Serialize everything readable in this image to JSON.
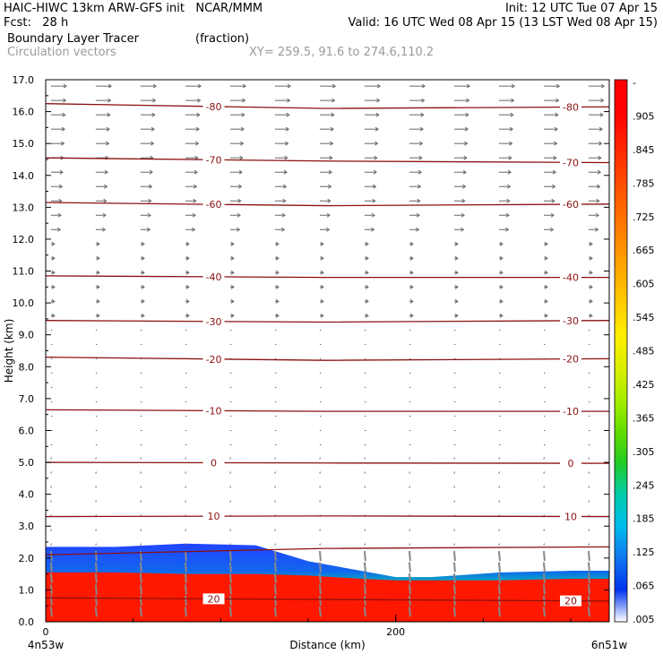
{
  "header": {
    "line1_left": "HAIC-HIWC 13km ARW-GFS init   NCAR/MMM",
    "line1_right": "Init: 12 UTC Tue 07 Apr 15",
    "line2_left": "Fcst:   28 h",
    "line2_right": "Valid: 16 UTC Wed 08 Apr 15 (13 LST Wed 08 Apr 15)",
    "field_name": "Boundary Layer Tracer",
    "field_units": "(fraction)",
    "vectors_label": "Circulation vectors",
    "xy_label": "XY= 259.5, 91.6 to 274.6,110.2"
  },
  "chart_data": {
    "type": "cross-section",
    "ylabel": "Height (km)",
    "xlabel": "Distance (km)",
    "ylim": [
      0,
      17
    ],
    "yticks": [
      "0.0",
      "1.0",
      "2.0",
      "3.0",
      "4.0",
      "5.0",
      "6.0",
      "7.0",
      "8.0",
      "9.0",
      "10.0",
      "11.0",
      "12.0",
      "13.0",
      "14.0",
      "15.0",
      "16.0",
      "17.0"
    ],
    "xlim": [
      0,
      322
    ],
    "xticks": [
      {
        "value": 0,
        "label": "0"
      },
      {
        "value": 200,
        "label": "200"
      }
    ],
    "left_endpoint": "4n53w",
    "right_endpoint": "6n51w",
    "colorbar": {
      "labels": [
        "-",
        ".905",
        ".845",
        ".785",
        ".725",
        ".665",
        ".605",
        ".545",
        ".485",
        ".425",
        ".365",
        ".305",
        ".245",
        ".185",
        ".125",
        ".065",
        ".005"
      ],
      "colors": [
        "#ff0000",
        "#ff0000",
        "#ff2200",
        "#ff4400",
        "#ff6600",
        "#ff8800",
        "#ffaa00",
        "#ffcc00",
        "#ffee00",
        "#ddee00",
        "#aaee00",
        "#66dd00",
        "#22cc22",
        "#00ccaa",
        "#00bbee",
        "#1177ee",
        "#0033ee",
        "#ffffff"
      ]
    },
    "temperature_contours": [
      {
        "label": "-80",
        "heights": [
          16.25,
          16.1,
          16.15
        ]
      },
      {
        "label": "-70",
        "heights": [
          14.55,
          14.45,
          14.4
        ]
      },
      {
        "label": "-60",
        "heights": [
          13.15,
          13.05,
          13.1
        ]
      },
      {
        "label": "-40",
        "heights": [
          10.85,
          10.8,
          10.8
        ]
      },
      {
        "label": "-30",
        "heights": [
          9.45,
          9.4,
          9.45
        ]
      },
      {
        "label": "-20",
        "heights": [
          8.3,
          8.2,
          8.25
        ]
      },
      {
        "label": "-10",
        "heights": [
          6.65,
          6.6,
          6.6
        ]
      },
      {
        "label": "0",
        "heights": [
          5.0,
          4.98,
          4.97
        ]
      },
      {
        "label": "10",
        "heights": [
          3.3,
          3.32,
          3.3
        ]
      },
      {
        "label": "",
        "heights": [
          2.1,
          2.3,
          2.35
        ]
      },
      {
        "label": "20",
        "heights": [
          0.75,
          0.7,
          0.65
        ]
      }
    ],
    "tracer_top_km": {
      "x": [
        0,
        40,
        80,
        120,
        150,
        180,
        200,
        220,
        260,
        300,
        322
      ],
      "red": [
        1.55,
        1.55,
        1.5,
        1.5,
        1.45,
        1.35,
        1.3,
        1.3,
        1.3,
        1.35,
        1.35
      ],
      "blue": [
        2.35,
        2.35,
        2.45,
        2.4,
        1.9,
        1.6,
        1.4,
        1.4,
        1.55,
        1.6,
        1.6
      ]
    }
  }
}
